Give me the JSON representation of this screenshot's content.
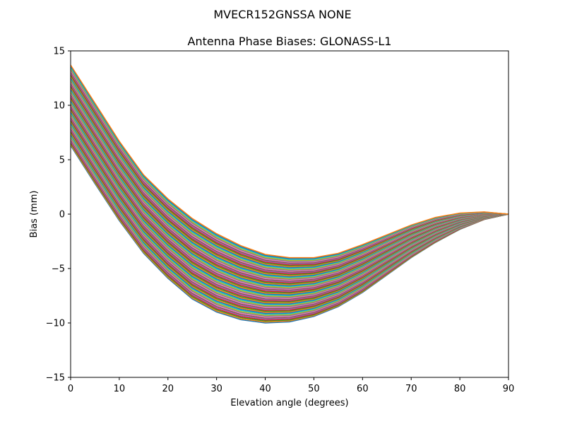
{
  "chart_data": {
    "type": "line",
    "suptitle": "MVECR152GNSSA   NONE",
    "title": "Antenna Phase Biases: GLONASS-L1",
    "xlabel": "Elevation angle (degrees)",
    "ylabel": "Bias (mm)",
    "xlim": [
      0,
      90
    ],
    "ylim": [
      -15,
      15
    ],
    "xticks": [
      0,
      10,
      20,
      30,
      40,
      50,
      60,
      70,
      80,
      90
    ],
    "yticks": [
      -15,
      -10,
      -5,
      0,
      5,
      10,
      15
    ],
    "ytick_labels": [
      "−15",
      "−10",
      "−5",
      "0",
      "5",
      "10",
      "15"
    ],
    "grid": false,
    "x": [
      0,
      5,
      10,
      15,
      20,
      25,
      30,
      35,
      40,
      45,
      50,
      55,
      60,
      65,
      70,
      75,
      80,
      85,
      90
    ],
    "series_count": 72,
    "envelope_upper": [
      13.7,
      10.2,
      6.7,
      3.6,
      1.4,
      -0.4,
      -1.8,
      -2.9,
      -3.7,
      -4.0,
      -4.0,
      -3.6,
      -2.8,
      -1.9,
      -1.0,
      -0.3,
      0.1,
      0.2,
      0.0
    ],
    "envelope_lower": [
      6.3,
      2.8,
      -0.6,
      -3.6,
      -5.9,
      -7.8,
      -9.0,
      -9.7,
      -10.0,
      -9.9,
      -9.4,
      -8.5,
      -7.2,
      -5.6,
      -4.0,
      -2.6,
      -1.4,
      -0.5,
      0.0
    ],
    "colors": [
      "#1f77b4",
      "#ff7f0e",
      "#2ca02c",
      "#d62728",
      "#9467bd",
      "#8c564b",
      "#e377c2",
      "#7f7f7f",
      "#bcbd22",
      "#17becf"
    ]
  }
}
